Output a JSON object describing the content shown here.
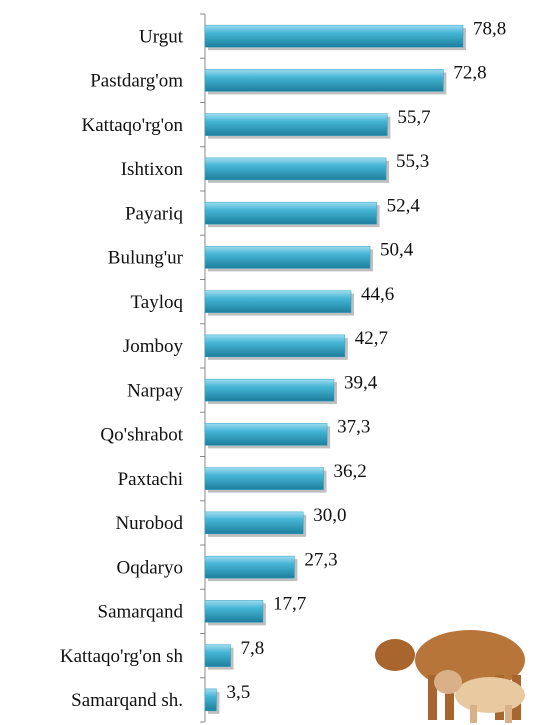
{
  "chart_data": {
    "type": "barh",
    "categories": [
      "Urgut",
      "Pastdarg'om",
      "Kattaqo'rg'on",
      "Ishtixon",
      "Payariq",
      "Bulung'ur",
      "Tayloq",
      "Jomboy",
      "Narpay",
      "Qo'shrabot",
      "Paxtachi",
      "Nurobod",
      "Oqdaryo",
      "Samarqand",
      "Kattaqo'rg'on sh",
      "Samarqand sh."
    ],
    "values": [
      78.8,
      72.8,
      55.7,
      55.3,
      52.4,
      50.4,
      44.6,
      42.7,
      39.4,
      37.3,
      36.2,
      30.0,
      27.3,
      17.7,
      7.8,
      3.5
    ],
    "value_labels": [
      "78,8",
      "72,8",
      "55,7",
      "55,3",
      "52,4",
      "50,4",
      "44,6",
      "42,7",
      "39,4",
      "37,3",
      "36,2",
      "30,0",
      "27,3",
      "17,7",
      "7,8",
      "3,5"
    ],
    "color": "#31a3c4"
  }
}
